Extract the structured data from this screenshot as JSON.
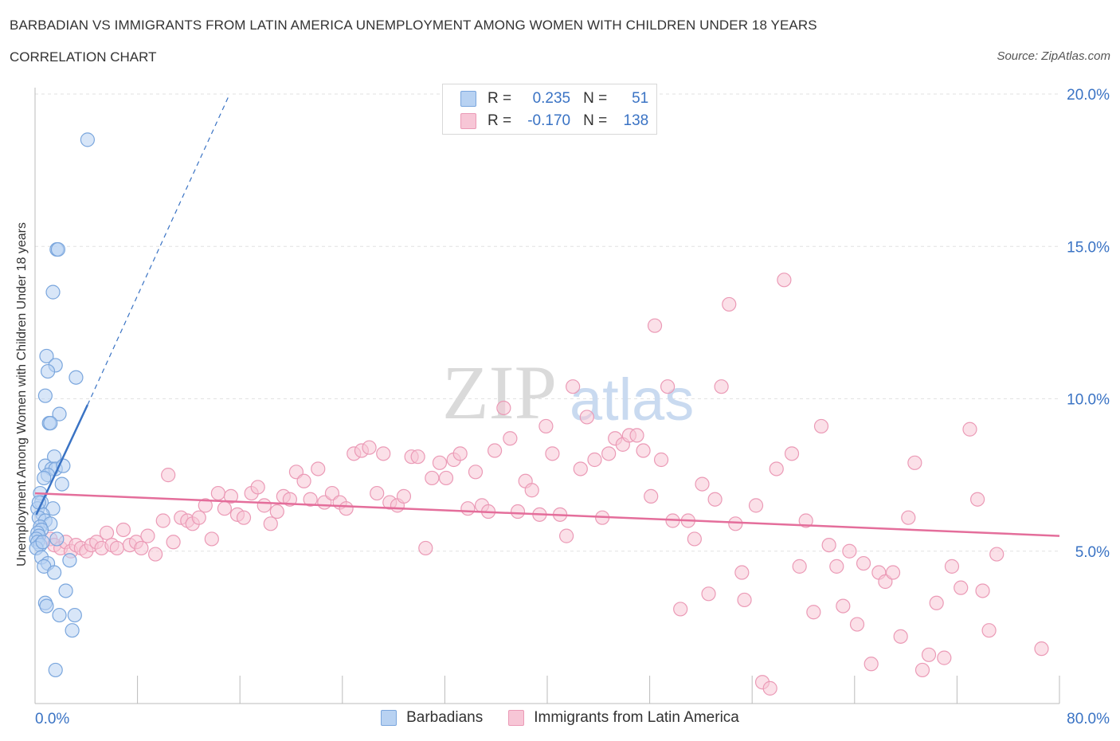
{
  "header": {
    "title": "BARBADIAN VS IMMIGRANTS FROM LATIN AMERICA UNEMPLOYMENT AMONG WOMEN WITH CHILDREN UNDER 18 YEARS",
    "subtitle": "CORRELATION CHART",
    "source": "Source: ZipAtlas.com"
  },
  "watermark": {
    "zip": "ZIP",
    "atlas": "atlas"
  },
  "legend": {
    "rows": [
      {
        "r_label": "R =",
        "r_value": "0.235",
        "n_label": "N =",
        "n_value": "51"
      },
      {
        "r_label": "R =",
        "r_value": "-0.170",
        "n_label": "N =",
        "n_value": "138"
      }
    ]
  },
  "colors": {
    "blue_fill": "#b8d2f2",
    "blue_stroke": "#7aa6dd",
    "blue_line": "#3a73c4",
    "pink_fill": "#f7c6d6",
    "pink_stroke": "#eb9ab6",
    "pink_line": "#e46e9b",
    "axis_label": "#3a73c4",
    "grid": "#e2e2e2"
  },
  "chart_data": {
    "type": "scatter",
    "title": "BARBADIAN VS IMMIGRANTS FROM LATIN AMERICA UNEMPLOYMENT AMONG WOMEN WITH CHILDREN UNDER 18 YEARS",
    "subtitle": "CORRELATION CHART",
    "ylabel": "Unemployment Among Women with Children Under 18 years",
    "xlim": [
      0,
      80
    ],
    "ylim": [
      0,
      20
    ],
    "x_tick_labels": [
      "0.0%",
      "80.0%"
    ],
    "y_ticks": [
      5,
      10,
      15,
      20
    ],
    "y_tick_labels": [
      "5.0%",
      "10.0%",
      "15.0%",
      "20.0%"
    ],
    "grid": true,
    "legend_position": "bottom",
    "series": [
      {
        "name": "Barbadians",
        "R": 0.235,
        "N": 51,
        "trend": {
          "x": [
            0.1,
            4.1
          ],
          "y": [
            6.2,
            9.8
          ]
        },
        "trend_extension": {
          "x": [
            4.1,
            15.2
          ],
          "y": [
            9.8,
            20.0
          ]
        },
        "points": [
          [
            4.1,
            18.5
          ],
          [
            1.7,
            14.9
          ],
          [
            1.8,
            14.9
          ],
          [
            1.4,
            13.5
          ],
          [
            0.9,
            11.4
          ],
          [
            1.6,
            11.1
          ],
          [
            1.0,
            10.9
          ],
          [
            3.2,
            10.7
          ],
          [
            0.8,
            10.1
          ],
          [
            1.9,
            9.5
          ],
          [
            1.1,
            9.2
          ],
          [
            1.2,
            9.2
          ],
          [
            1.5,
            8.1
          ],
          [
            0.8,
            7.8
          ],
          [
            1.3,
            7.7
          ],
          [
            1.6,
            7.7
          ],
          [
            2.2,
            7.8
          ],
          [
            1.0,
            7.5
          ],
          [
            0.7,
            7.4
          ],
          [
            2.1,
            7.2
          ],
          [
            0.4,
            6.9
          ],
          [
            0.5,
            6.6
          ],
          [
            1.4,
            6.4
          ],
          [
            0.2,
            6.4
          ],
          [
            0.6,
            6.2
          ],
          [
            0.3,
            6.1
          ],
          [
            0.8,
            6.0
          ],
          [
            1.2,
            5.9
          ],
          [
            0.4,
            5.8
          ],
          [
            0.5,
            5.7
          ],
          [
            0.2,
            5.6
          ],
          [
            0.3,
            5.5
          ],
          [
            0.1,
            5.4
          ],
          [
            0.2,
            5.3
          ],
          [
            1.7,
            5.4
          ],
          [
            0.4,
            5.2
          ],
          [
            0.1,
            5.1
          ],
          [
            0.5,
            4.8
          ],
          [
            2.7,
            4.7
          ],
          [
            1.0,
            4.6
          ],
          [
            0.7,
            4.5
          ],
          [
            1.5,
            4.3
          ],
          [
            2.4,
            3.7
          ],
          [
            0.8,
            3.3
          ],
          [
            0.9,
            3.2
          ],
          [
            1.9,
            2.9
          ],
          [
            3.1,
            2.9
          ],
          [
            2.9,
            2.4
          ],
          [
            1.6,
            1.1
          ],
          [
            0.3,
            6.6
          ],
          [
            0.6,
            5.3
          ]
        ]
      },
      {
        "name": "Immigrants from Latin America",
        "R": -0.17,
        "N": 138,
        "trend": {
          "x": [
            0,
            80
          ],
          "y": [
            6.9,
            5.5
          ]
        },
        "points": [
          [
            1.2,
            5.4
          ],
          [
            1.5,
            5.2
          ],
          [
            2.0,
            5.1
          ],
          [
            2.4,
            5.3
          ],
          [
            2.8,
            5.0
          ],
          [
            3.2,
            5.2
          ],
          [
            3.6,
            5.1
          ],
          [
            4.0,
            5.0
          ],
          [
            4.4,
            5.2
          ],
          [
            4.8,
            5.3
          ],
          [
            5.2,
            5.1
          ],
          [
            5.6,
            5.6
          ],
          [
            6.0,
            5.2
          ],
          [
            6.4,
            5.1
          ],
          [
            6.9,
            5.7
          ],
          [
            7.4,
            5.2
          ],
          [
            7.9,
            5.3
          ],
          [
            8.3,
            5.1
          ],
          [
            8.8,
            5.5
          ],
          [
            9.4,
            4.9
          ],
          [
            10.0,
            6.0
          ],
          [
            10.4,
            7.5
          ],
          [
            10.8,
            5.3
          ],
          [
            11.4,
            6.1
          ],
          [
            11.9,
            6.0
          ],
          [
            12.3,
            5.9
          ],
          [
            12.8,
            6.1
          ],
          [
            13.3,
            6.5
          ],
          [
            13.8,
            5.4
          ],
          [
            14.3,
            6.9
          ],
          [
            14.8,
            6.4
          ],
          [
            15.3,
            6.8
          ],
          [
            15.8,
            6.2
          ],
          [
            16.3,
            6.1
          ],
          [
            16.9,
            6.9
          ],
          [
            17.4,
            7.1
          ],
          [
            17.9,
            6.5
          ],
          [
            18.4,
            5.9
          ],
          [
            18.9,
            6.3
          ],
          [
            19.4,
            6.8
          ],
          [
            19.9,
            6.7
          ],
          [
            20.4,
            7.6
          ],
          [
            21.0,
            7.3
          ],
          [
            21.5,
            6.7
          ],
          [
            22.1,
            7.7
          ],
          [
            22.6,
            6.6
          ],
          [
            23.2,
            6.9
          ],
          [
            23.8,
            6.6
          ],
          [
            24.3,
            6.4
          ],
          [
            24.9,
            8.2
          ],
          [
            25.5,
            8.3
          ],
          [
            26.1,
            8.4
          ],
          [
            26.7,
            6.9
          ],
          [
            27.2,
            8.2
          ],
          [
            27.7,
            6.6
          ],
          [
            28.3,
            6.5
          ],
          [
            28.8,
            6.8
          ],
          [
            29.4,
            8.1
          ],
          [
            29.9,
            8.1
          ],
          [
            30.5,
            5.1
          ],
          [
            31.0,
            7.4
          ],
          [
            31.6,
            7.9
          ],
          [
            32.1,
            7.4
          ],
          [
            32.7,
            8.0
          ],
          [
            33.2,
            8.2
          ],
          [
            33.8,
            6.4
          ],
          [
            34.4,
            7.6
          ],
          [
            34.9,
            6.5
          ],
          [
            35.4,
            6.3
          ],
          [
            35.9,
            8.3
          ],
          [
            36.6,
            9.7
          ],
          [
            37.1,
            8.7
          ],
          [
            37.7,
            6.3
          ],
          [
            38.3,
            7.3
          ],
          [
            38.8,
            7.0
          ],
          [
            39.4,
            6.2
          ],
          [
            39.9,
            9.1
          ],
          [
            40.4,
            8.2
          ],
          [
            41.0,
            6.2
          ],
          [
            41.5,
            5.5
          ],
          [
            42.0,
            10.4
          ],
          [
            42.6,
            7.7
          ],
          [
            43.1,
            9.4
          ],
          [
            43.7,
            8.0
          ],
          [
            44.3,
            6.1
          ],
          [
            44.8,
            8.2
          ],
          [
            45.3,
            8.7
          ],
          [
            45.9,
            8.5
          ],
          [
            46.4,
            8.8
          ],
          [
            47.0,
            8.8
          ],
          [
            47.5,
            8.3
          ],
          [
            48.1,
            6.8
          ],
          [
            48.4,
            12.4
          ],
          [
            48.9,
            8.0
          ],
          [
            49.4,
            10.4
          ],
          [
            49.8,
            6.0
          ],
          [
            50.4,
            3.1
          ],
          [
            51.0,
            6.0
          ],
          [
            51.5,
            5.4
          ],
          [
            52.1,
            7.2
          ],
          [
            52.6,
            3.6
          ],
          [
            53.1,
            6.7
          ],
          [
            53.6,
            10.4
          ],
          [
            54.2,
            13.1
          ],
          [
            54.7,
            5.9
          ],
          [
            55.2,
            4.3
          ],
          [
            55.4,
            3.4
          ],
          [
            56.3,
            6.5
          ],
          [
            56.8,
            0.7
          ],
          [
            57.4,
            0.5
          ],
          [
            57.9,
            7.7
          ],
          [
            58.5,
            13.9
          ],
          [
            59.1,
            8.2
          ],
          [
            59.7,
            4.5
          ],
          [
            60.2,
            6.0
          ],
          [
            60.8,
            3.0
          ],
          [
            61.4,
            9.1
          ],
          [
            62.0,
            5.2
          ],
          [
            62.6,
            4.5
          ],
          [
            63.1,
            3.2
          ],
          [
            63.6,
            5.0
          ],
          [
            64.2,
            2.6
          ],
          [
            64.7,
            4.6
          ],
          [
            65.3,
            1.3
          ],
          [
            65.9,
            4.3
          ],
          [
            66.4,
            4.0
          ],
          [
            67.0,
            4.3
          ],
          [
            67.6,
            2.2
          ],
          [
            68.2,
            6.1
          ],
          [
            68.7,
            7.9
          ],
          [
            69.3,
            1.1
          ],
          [
            69.8,
            1.6
          ],
          [
            70.4,
            3.3
          ],
          [
            71.0,
            1.5
          ],
          [
            71.6,
            4.5
          ],
          [
            72.3,
            3.8
          ],
          [
            73.0,
            9.0
          ],
          [
            73.6,
            6.7
          ],
          [
            74.0,
            3.7
          ],
          [
            74.5,
            2.4
          ],
          [
            75.1,
            4.9
          ],
          [
            78.6,
            1.8
          ]
        ]
      }
    ]
  },
  "bottom_legend": [
    "Barbadians",
    "Immigrants from Latin America"
  ]
}
